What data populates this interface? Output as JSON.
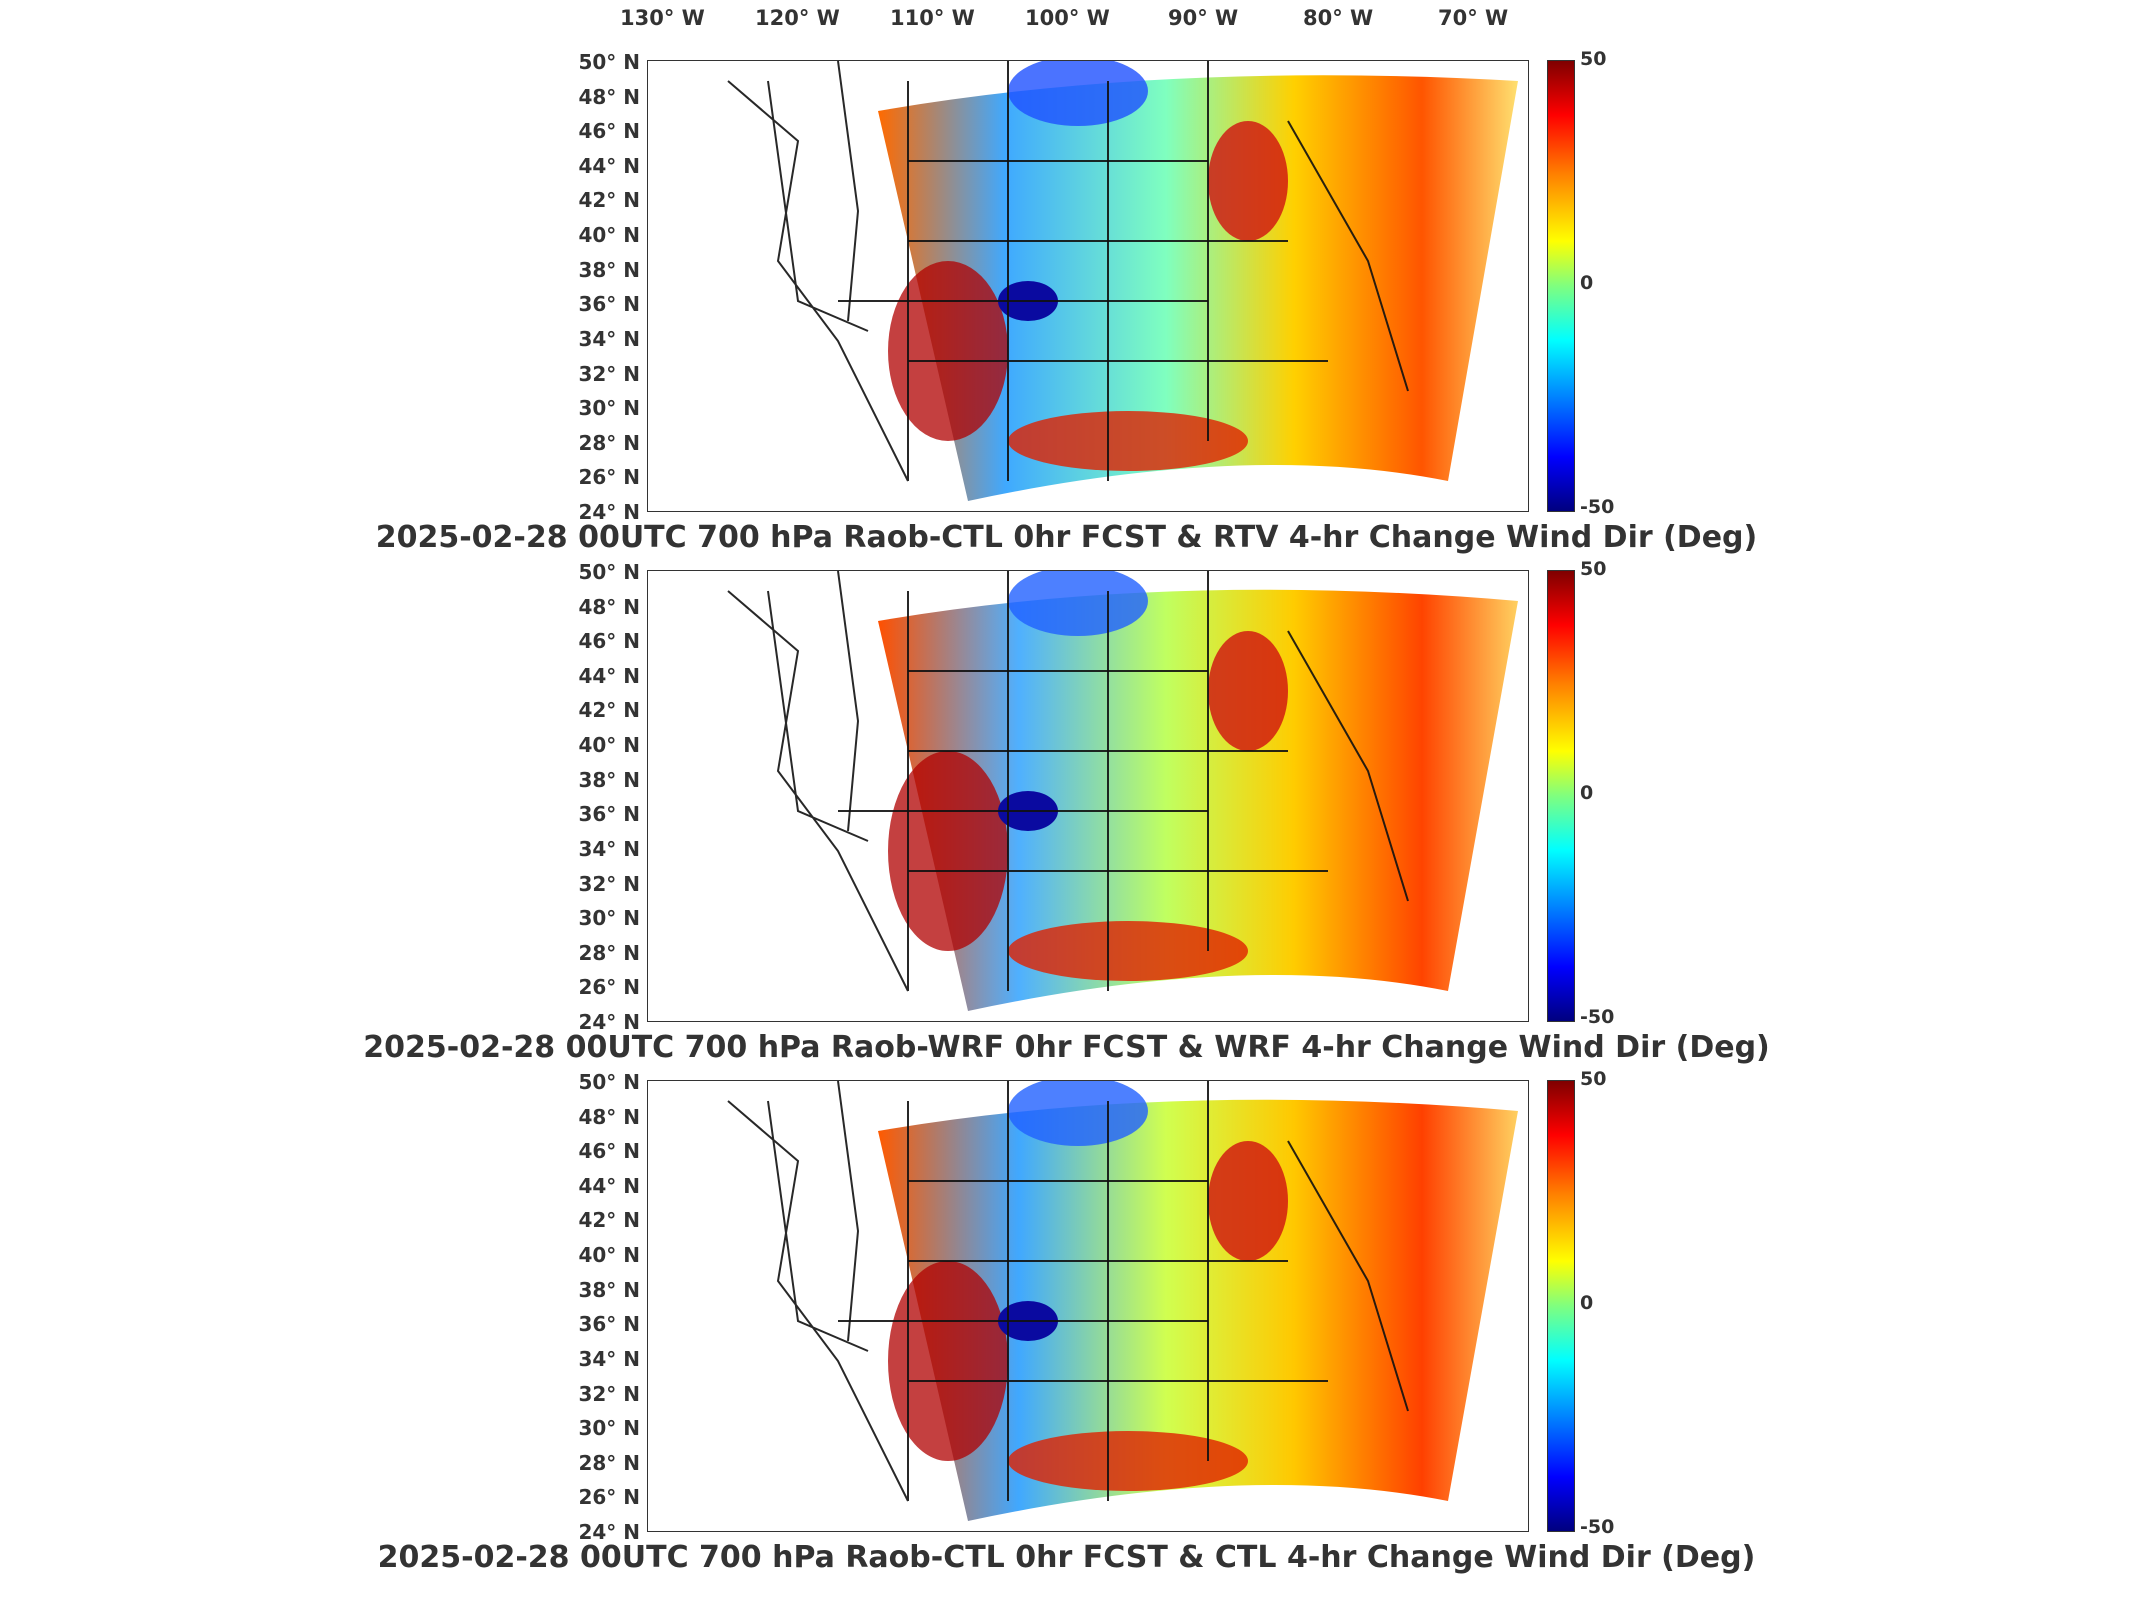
{
  "longitude_labels": [
    "130° W",
    "120° W",
    "110° W",
    "100° W",
    "90° W",
    "80° W",
    "70° W"
  ],
  "latitude_labels": [
    "50° N",
    "48° N",
    "46° N",
    "44° N",
    "42° N",
    "40° N",
    "38° N",
    "36° N",
    "34° N",
    "32° N",
    "30° N",
    "28° N",
    "26° N",
    "24° N"
  ],
  "colorbar": {
    "max_label": "50",
    "mid_label": "0",
    "min_label": "-50"
  },
  "panels": [
    {
      "title": "2025-02-28 00UTC 700 hPa Raob-CTL 0hr FCST & RTV 4-hr Change Wind Dir (Deg)"
    },
    {
      "title": "2025-02-28 00UTC 700 hPa Raob-WRF 0hr FCST & WRF 4-hr Change Wind Dir (Deg)"
    },
    {
      "title": "2025-02-28 00UTC 700 hPa Raob-CTL 0hr FCST & CTL 4-hr Change Wind Dir (Deg)"
    }
  ],
  "colors": {
    "max": "#7f0000",
    "mid": "#7fff7f",
    "min": "#00007f"
  }
}
